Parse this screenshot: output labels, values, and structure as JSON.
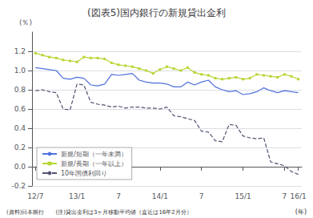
{
  "chart_data": {
    "type": "line",
    "title": "(図表5)国内銀行の新規貸出金利",
    "ylabel": "(％)",
    "xlabel": "(年)",
    "annotations": [
      "(資料)日本銀行　　(注)貸出金利は3ヶ月移動平均値（直近は16年2月分）"
    ],
    "categories": [
      "12/7",
      null,
      null,
      null,
      null,
      null,
      "13/1",
      null,
      null,
      null,
      null,
      null,
      "7",
      null,
      null,
      null,
      null,
      null,
      "14/1",
      null,
      null,
      null,
      null,
      null,
      "7",
      null,
      null,
      null,
      null,
      null,
      "15/1",
      null,
      null,
      null,
      null,
      null,
      "7",
      null,
      "16/1"
    ],
    "series": [
      {
        "name": "新規/短期（一年未満）",
        "line_style": "solid",
        "values": [
          1.03,
          1.02,
          1.01,
          1.0,
          0.92,
          0.91,
          0.93,
          0.92,
          0.85,
          0.84,
          0.86,
          0.96,
          0.95,
          0.96,
          0.97,
          0.9,
          0.88,
          0.87,
          0.87,
          0.86,
          0.83,
          0.83,
          0.88,
          0.85,
          0.88,
          0.9,
          0.83,
          0.8,
          0.78,
          0.79,
          0.75,
          0.76,
          0.78,
          0.82,
          0.79,
          0.77,
          0.79,
          0.78,
          0.77
        ]
      },
      {
        "name": "新規/長期（一年以上）",
        "line_style": "solid",
        "marker": "square",
        "values": [
          1.18,
          1.16,
          1.14,
          1.13,
          1.11,
          1.1,
          1.09,
          1.14,
          1.13,
          1.13,
          1.12,
          1.08,
          1.06,
          1.05,
          1.04,
          1.02,
          1.0,
          0.97,
          1.01,
          1.04,
          1.02,
          1.0,
          1.03,
          0.98,
          0.96,
          0.95,
          0.92,
          0.91,
          0.92,
          0.93,
          0.91,
          0.92,
          0.96,
          0.95,
          0.94,
          0.93,
          0.96,
          0.94,
          0.91
        ]
      },
      {
        "name": "10年国債利回り",
        "line_style": "dashed",
        "values": [
          0.79,
          0.8,
          0.78,
          0.77,
          0.6,
          0.59,
          0.86,
          0.85,
          0.67,
          0.65,
          0.64,
          0.62,
          0.63,
          0.61,
          0.62,
          0.62,
          0.61,
          0.61,
          0.6,
          0.62,
          0.53,
          0.52,
          0.5,
          0.48,
          0.37,
          0.36,
          0.27,
          0.26,
          0.44,
          0.43,
          0.32,
          0.3,
          0.29,
          0.3,
          0.05,
          0.03,
          0.01,
          -0.05,
          -0.08
        ]
      }
    ],
    "ylim": [
      -0.2,
      1.4
    ],
    "yticks": [
      -0.2,
      {
        "value": 0,
        "label": "0.0"
      },
      0.2,
      0.4,
      0.6,
      0.8,
      {
        "value": 1,
        "label": "1.0"
      },
      1.2
    ],
    "grid": true,
    "legend": "lower left"
  }
}
